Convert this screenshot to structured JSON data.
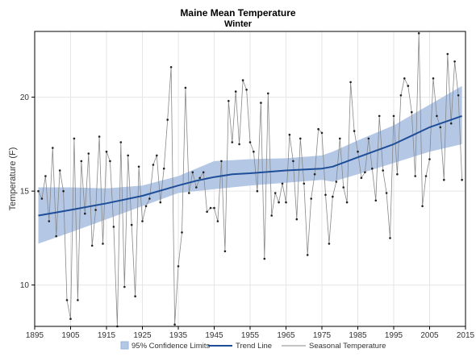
{
  "chart_data": {
    "type": "line",
    "title": "Maine Mean Temperature",
    "subtitle": "Winter",
    "xlabel": "",
    "ylabel": "Temperature (F)",
    "xlim": [
      1895,
      2015
    ],
    "ylim": [
      7.8,
      23.5
    ],
    "x_ticks": [
      "1895",
      "1905",
      "1915",
      "1925",
      "1935",
      "1945",
      "1955",
      "1965",
      "1975",
      "1985",
      "1995",
      "2005",
      "2015"
    ],
    "y_ticks": [
      "10",
      "15",
      "20"
    ],
    "grid": true,
    "legend_position": "bottom",
    "legend": [
      {
        "key": "band",
        "label": "95% Confidence Limits"
      },
      {
        "key": "trend",
        "label": "Trend Line"
      },
      {
        "key": "seasonal",
        "label": "Seasonal Temperature"
      }
    ],
    "colors": {
      "band_fill": "#b4c8e6",
      "band_stroke": "#9ab2d8",
      "trend": "#1f4e99",
      "seasonal": "#888888",
      "marker": "#222222",
      "grid": "#e6e6e6",
      "frame": "#000000"
    },
    "series": [
      {
        "name": "Seasonal Temperature",
        "points": [
          [
            1896,
            15.0
          ],
          [
            1897,
            14.6
          ],
          [
            1898,
            15.8
          ],
          [
            1899,
            13.4
          ],
          [
            1900,
            17.3
          ],
          [
            1901,
            12.6
          ],
          [
            1902,
            16.1
          ],
          [
            1903,
            15.0
          ],
          [
            1904,
            9.2
          ],
          [
            1905,
            8.2
          ],
          [
            1906,
            17.8
          ],
          [
            1907,
            9.2
          ],
          [
            1908,
            16.6
          ],
          [
            1909,
            13.8
          ],
          [
            1910,
            17.0
          ],
          [
            1911,
            12.1
          ],
          [
            1912,
            14.0
          ],
          [
            1913,
            17.9
          ],
          [
            1914,
            12.2
          ],
          [
            1915,
            17.1
          ],
          [
            1916,
            16.6
          ],
          [
            1917,
            13.1
          ],
          [
            1918,
            7.8
          ],
          [
            1919,
            17.6
          ],
          [
            1920,
            9.9
          ],
          [
            1921,
            16.9
          ],
          [
            1922,
            13.2
          ],
          [
            1923,
            9.4
          ],
          [
            1924,
            16.3
          ],
          [
            1925,
            13.4
          ],
          [
            1926,
            14.2
          ],
          [
            1927,
            14.6
          ],
          [
            1928,
            16.4
          ],
          [
            1929,
            16.9
          ],
          [
            1930,
            14.4
          ],
          [
            1931,
            16.2
          ],
          [
            1932,
            18.8
          ],
          [
            1933,
            21.6
          ],
          [
            1934,
            7.9
          ],
          [
            1935,
            11.0
          ],
          [
            1936,
            12.8
          ],
          [
            1937,
            20.5
          ],
          [
            1938,
            14.9
          ],
          [
            1939,
            16.0
          ],
          [
            1940,
            15.2
          ],
          [
            1941,
            15.7
          ],
          [
            1942,
            16.0
          ],
          [
            1943,
            13.9
          ],
          [
            1944,
            14.1
          ],
          [
            1945,
            14.1
          ],
          [
            1946,
            13.4
          ],
          [
            1947,
            16.6
          ],
          [
            1948,
            11.8
          ],
          [
            1949,
            19.8
          ],
          [
            1950,
            17.6
          ],
          [
            1951,
            20.3
          ],
          [
            1952,
            17.5
          ],
          [
            1953,
            20.9
          ],
          [
            1954,
            20.4
          ],
          [
            1955,
            17.6
          ],
          [
            1956,
            17.1
          ],
          [
            1957,
            15.0
          ],
          [
            1958,
            19.7
          ],
          [
            1959,
            11.4
          ],
          [
            1960,
            20.2
          ],
          [
            1961,
            13.7
          ],
          [
            1962,
            14.9
          ],
          [
            1963,
            14.4
          ],
          [
            1964,
            15.4
          ],
          [
            1965,
            14.4
          ],
          [
            1966,
            18.0
          ],
          [
            1967,
            16.6
          ],
          [
            1968,
            13.5
          ],
          [
            1969,
            17.8
          ],
          [
            1970,
            15.4
          ],
          [
            1971,
            11.6
          ],
          [
            1972,
            14.6
          ],
          [
            1973,
            15.9
          ],
          [
            1974,
            18.3
          ],
          [
            1975,
            18.1
          ],
          [
            1976,
            14.8
          ],
          [
            1977,
            12.2
          ],
          [
            1978,
            14.7
          ],
          [
            1979,
            15.5
          ],
          [
            1980,
            17.8
          ],
          [
            1981,
            15.2
          ],
          [
            1982,
            14.4
          ],
          [
            1983,
            20.8
          ],
          [
            1984,
            18.2
          ],
          [
            1985,
            17.1
          ],
          [
            1986,
            15.7
          ],
          [
            1987,
            16.0
          ],
          [
            1988,
            17.8
          ],
          [
            1989,
            16.2
          ],
          [
            1990,
            14.5
          ],
          [
            1991,
            19.0
          ],
          [
            1992,
            16.1
          ],
          [
            1993,
            14.9
          ],
          [
            1994,
            12.5
          ],
          [
            1995,
            19.0
          ],
          [
            1996,
            15.9
          ],
          [
            1997,
            20.1
          ],
          [
            1998,
            21.0
          ],
          [
            1999,
            20.6
          ],
          [
            2000,
            19.2
          ],
          [
            2001,
            15.8
          ],
          [
            2002,
            23.4
          ],
          [
            2003,
            14.2
          ],
          [
            2004,
            15.8
          ],
          [
            2005,
            16.7
          ],
          [
            2006,
            21.0
          ],
          [
            2007,
            19.0
          ],
          [
            2008,
            18.4
          ],
          [
            2009,
            15.6
          ],
          [
            2010,
            22.3
          ],
          [
            2011,
            18.6
          ],
          [
            2012,
            21.9
          ],
          [
            2013,
            20.1
          ],
          [
            2014,
            15.6
          ]
        ]
      },
      {
        "name": "Trend Line",
        "points": [
          [
            1896,
            13.7
          ],
          [
            1905,
            14.0
          ],
          [
            1915,
            14.35
          ],
          [
            1925,
            14.75
          ],
          [
            1935,
            15.3
          ],
          [
            1940,
            15.55
          ],
          [
            1945,
            15.75
          ],
          [
            1950,
            15.9
          ],
          [
            1955,
            15.95
          ],
          [
            1965,
            16.1
          ],
          [
            1975,
            16.2
          ],
          [
            1978,
            16.3
          ],
          [
            1985,
            16.8
          ],
          [
            1995,
            17.5
          ],
          [
            2005,
            18.4
          ],
          [
            2014,
            19.0
          ]
        ]
      },
      {
        "name": "95% Confidence Limits",
        "x": [
          1896,
          1905,
          1915,
          1925,
          1935,
          1945,
          1950,
          1955,
          1965,
          1975,
          1978,
          1985,
          1995,
          2005,
          2014
        ],
        "upper": [
          15.2,
          15.2,
          15.15,
          15.3,
          15.8,
          16.6,
          16.65,
          16.7,
          16.75,
          16.9,
          17.1,
          17.7,
          18.5,
          19.6,
          20.6
        ],
        "lower": [
          12.2,
          12.8,
          13.5,
          14.2,
          14.9,
          15.1,
          15.2,
          15.3,
          15.45,
          15.6,
          15.5,
          15.9,
          16.5,
          17.1,
          17.5
        ]
      }
    ]
  }
}
